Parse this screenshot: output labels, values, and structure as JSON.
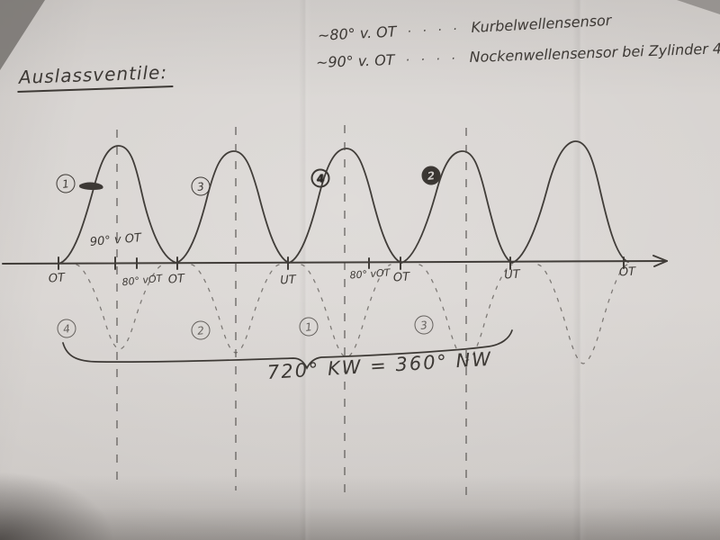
{
  "title": "Auslassventile:",
  "notes": {
    "line1": {
      "angle": "~80° v. OT",
      "dots": "· · · ·",
      "sensor": "Kurbelwellensensor"
    },
    "line2": {
      "angle": "~90° v. OT",
      "dots": "· · · ·",
      "sensor": "Nockenwellensensor bei Zylinder 4"
    }
  },
  "axis": {
    "above_label": "90° v OT",
    "below_labels": [
      "OT",
      "80° vOT",
      "OT",
      "UT",
      "80° vOT",
      "OT",
      "UT",
      "OT"
    ]
  },
  "curve_numbers_top": [
    "1",
    "3",
    "4",
    "2"
  ],
  "curve_numbers_bottom": [
    "4",
    "2",
    "1",
    "3"
  ],
  "brace_label": "720° KW = 360° NW",
  "ink_color": "#3d3935",
  "paper_color": "#d6d2cf"
}
